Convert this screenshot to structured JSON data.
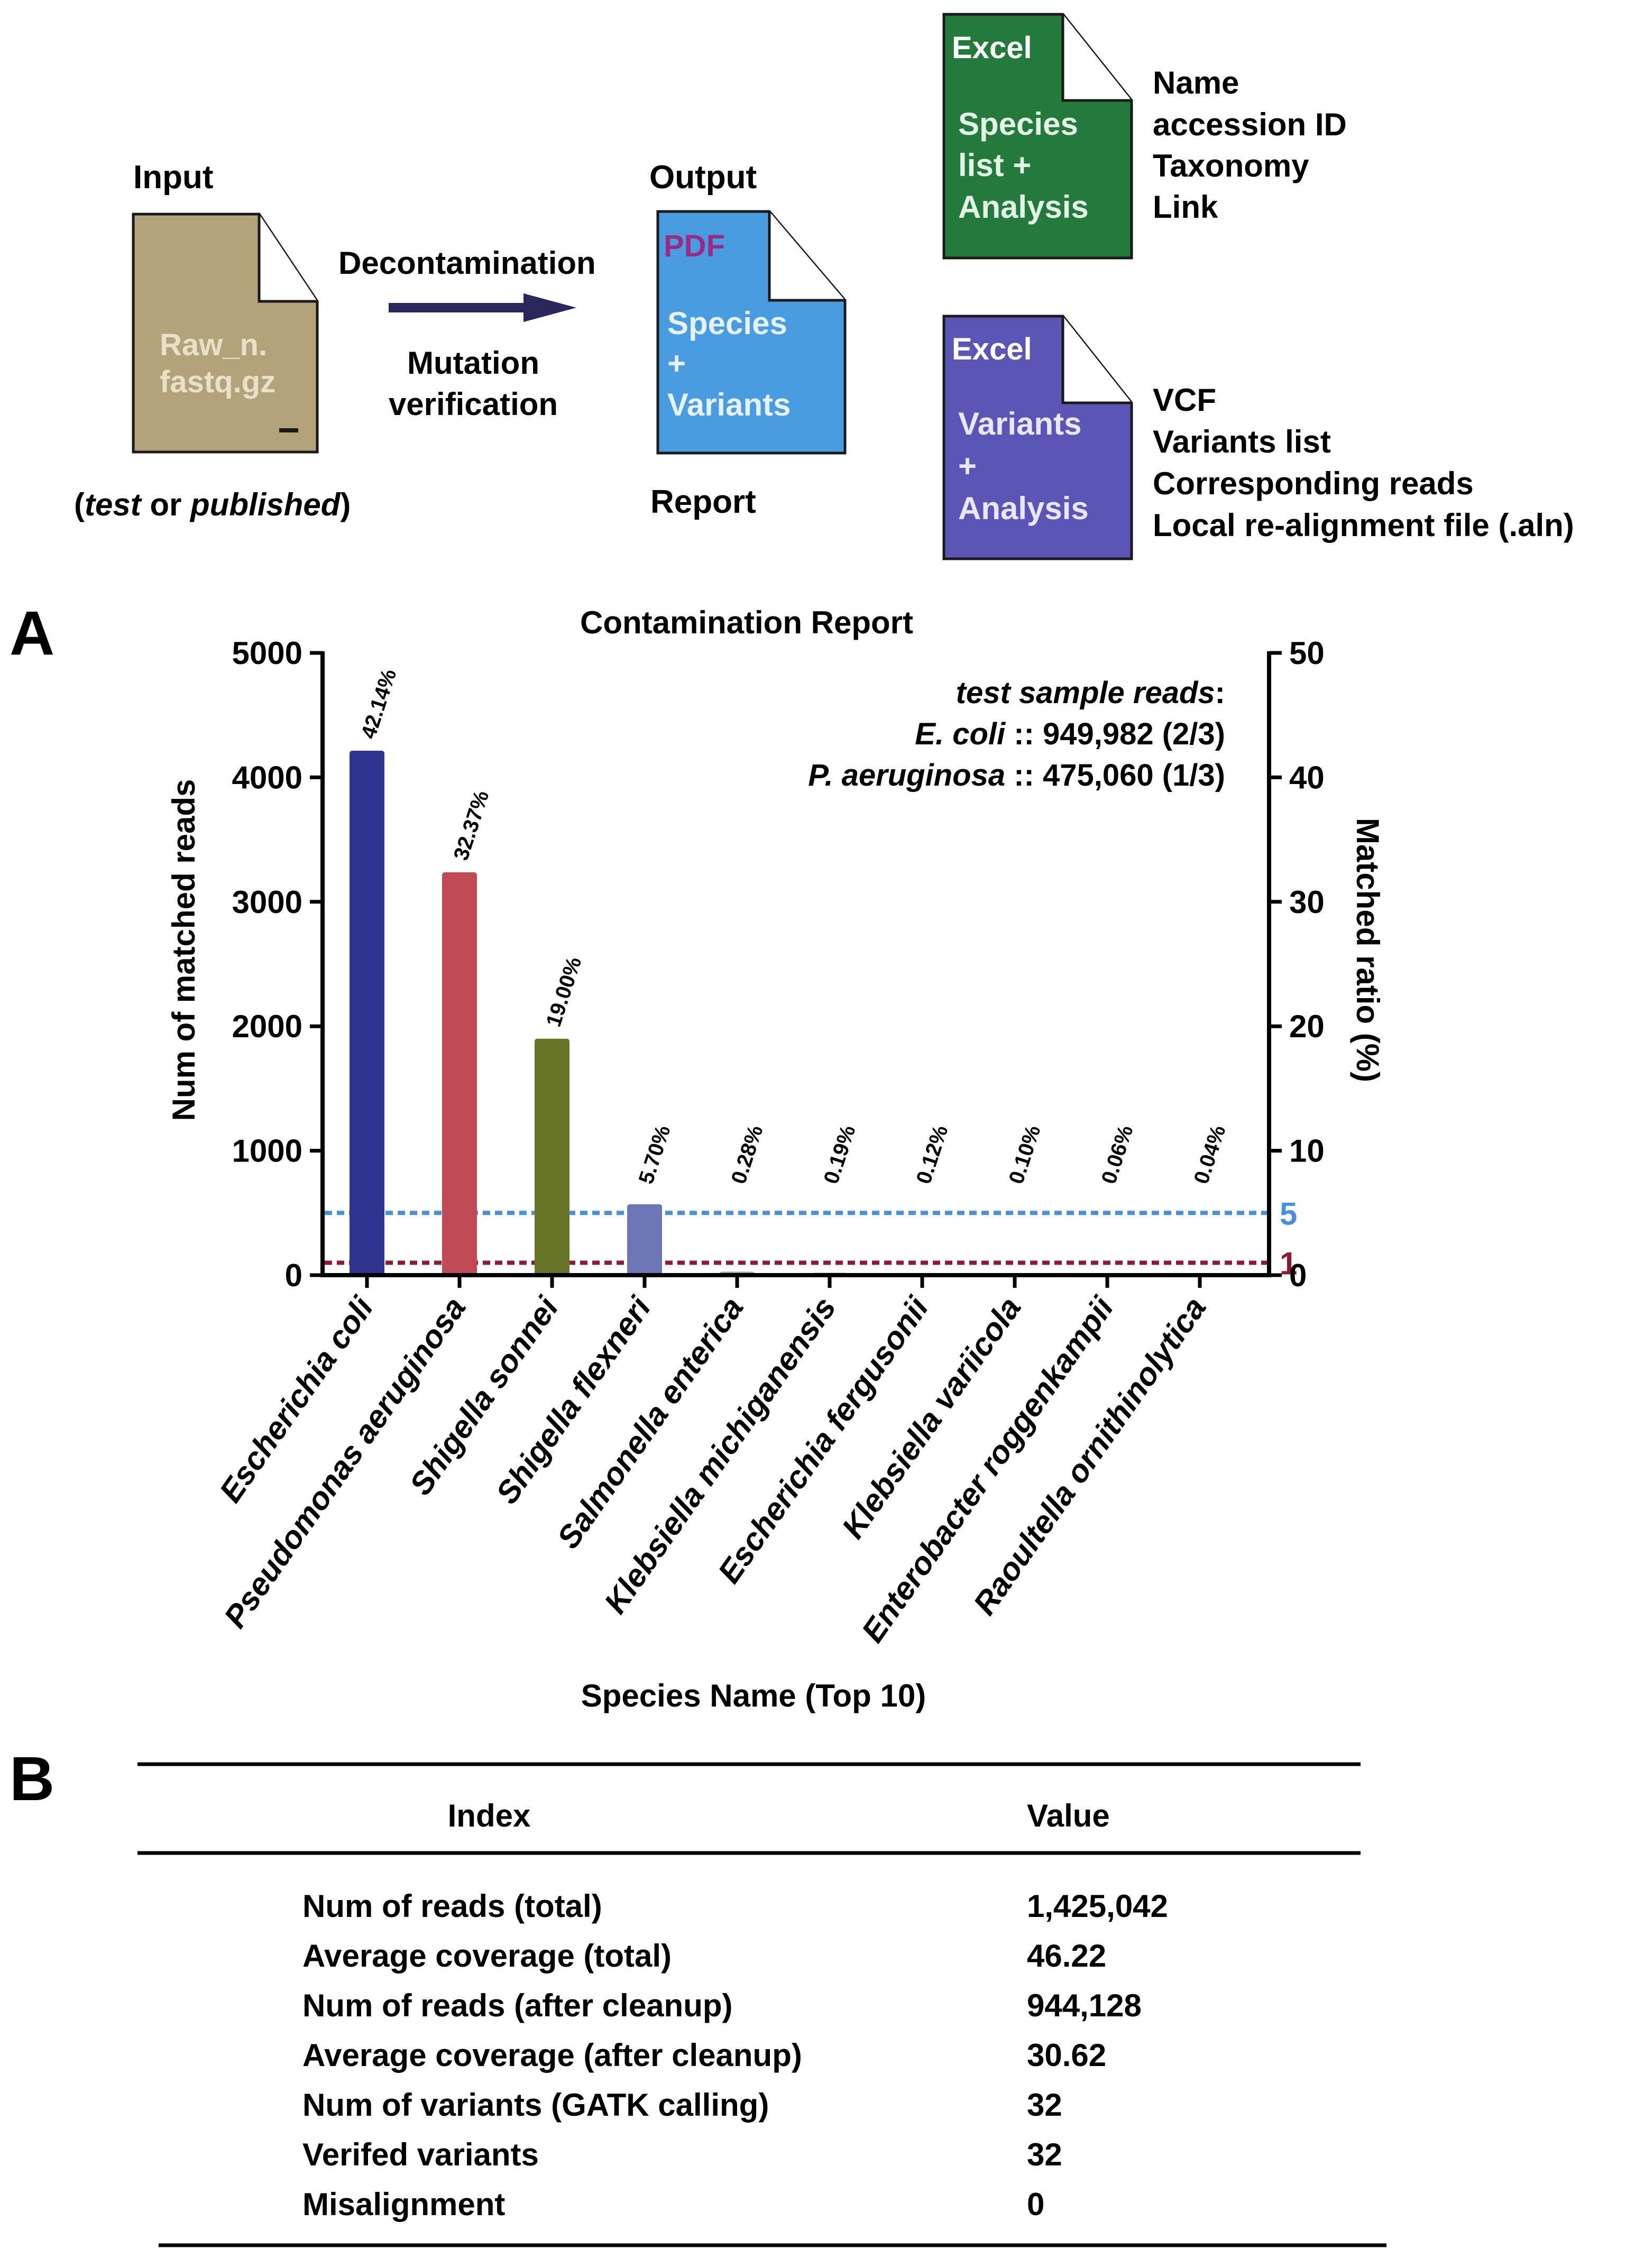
{
  "workflow": {
    "input": {
      "heading": "Input",
      "file_line1": "Raw_n.",
      "file_line2": "fastq.gz",
      "file_mark": "_",
      "note_open": "(",
      "note_test": "test",
      "note_or": " or ",
      "note_published": "published",
      "note_close": ")"
    },
    "arrow": {
      "label_top": "Decontamination",
      "label_bottom_line1": "Mutation",
      "label_bottom_line2": "verification"
    },
    "output": {
      "heading": "Output",
      "file_type": "PDF",
      "file_line1": "Species",
      "file_line2": "+",
      "file_line3": "Variants",
      "caption": "Report"
    },
    "excel_species": {
      "file_type": "Excel",
      "line1": "Species",
      "line2": "list +",
      "line3": "Analysis",
      "items": [
        "Name",
        "accession ID",
        "Taxonomy",
        "Link"
      ]
    },
    "excel_variants": {
      "file_type": "Excel",
      "line1": "Variants",
      "line2": "+",
      "line3": "Analysis",
      "items": [
        "VCF",
        "Variants list",
        "Corresponding reads",
        "Local re-alignment file (.aln)"
      ]
    },
    "colors": {
      "input_file": "#b3a37a",
      "pdf_file": "#4a9ce0",
      "pdf_label": "#9b2a84",
      "excel_species": "#237a3a",
      "excel_variants": "#5b56b5",
      "arrow": "#27275c"
    }
  },
  "panel_labels": {
    "a": "A",
    "b": "B"
  },
  "chart_data": {
    "type": "bar",
    "title": "Contamination Report",
    "xlabel": "Species Name (Top 10)",
    "ylabel": "Num of matched reads",
    "y2label": "Matched ratio (%)",
    "ylim": [
      0,
      5000
    ],
    "y2lim": [
      0,
      50
    ],
    "yticks": [
      "0",
      "1000",
      "2000",
      "3000",
      "4000",
      "5000"
    ],
    "y2ticks": [
      "0",
      "10",
      "20",
      "30",
      "40",
      "50"
    ],
    "categories": [
      "Escherichia coli",
      "Pseudomonas aeruginosa",
      "Shigella sonnei",
      "Shigella flexneri",
      "Salmonella enterica",
      "Klebsiella michiganensis",
      "Escherichia fergusonii",
      "Klebsiella variicola",
      "Enterobacter roggenkampii",
      "Raoultella ornithinolytica"
    ],
    "values": [
      4214,
      3237,
      1900,
      570,
      28,
      19,
      12,
      10,
      6,
      4
    ],
    "ratio_labels": [
      "42.14%",
      "32.37%",
      "19.00%",
      "5.70%",
      "0.28%",
      "0.19%",
      "0.12%",
      "0.10%",
      "0.06%",
      "0.04%"
    ],
    "bar_colors": [
      "#2e3490",
      "#c04b57",
      "#687427",
      "#6e76b5",
      "#a3a3a3",
      "#a3a3a3",
      "#a3a3a3",
      "#a3a3a3",
      "#a3a3a3",
      "#a3a3a3"
    ],
    "thresholds": [
      {
        "label": "5",
        "ratio": 5,
        "color": "#4a8fdc"
      },
      {
        "label": "1",
        "ratio": 1,
        "color": "#8c1c34"
      }
    ],
    "annotation": {
      "line1_italic": "test sample reads",
      "line1_plain": ":",
      "line2_species": "E. coli",
      "line2_value": " :: 949,982 (2/3)",
      "line3_species": "P. aeruginosa",
      "line3_value": " :: 475,060 (1/3)"
    }
  },
  "stats_table": {
    "headers": [
      "Index",
      "Value"
    ],
    "rows": [
      [
        "Num of reads (total)",
        "1,425,042"
      ],
      [
        "Average coverage (total)",
        "46.22"
      ],
      [
        "Num of reads (after cleanup)",
        "944,128"
      ],
      [
        "Average coverage (after cleanup)",
        "30.62"
      ],
      [
        "Num of variants (GATK calling)",
        "32"
      ],
      [
        "Verifed variants",
        "32"
      ],
      [
        "Misalignment",
        "0"
      ]
    ]
  }
}
